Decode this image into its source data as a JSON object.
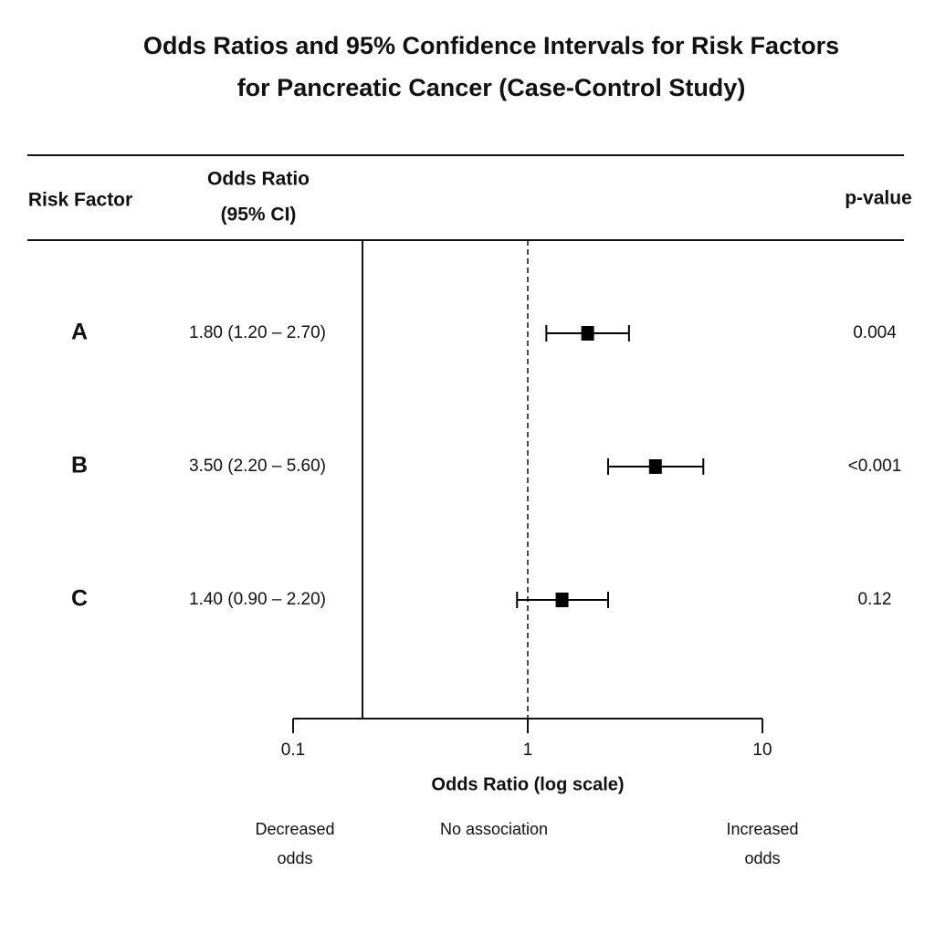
{
  "chart_data": {
    "type": "forest",
    "title": [
      "Odds Ratios and 95% Confidence Intervals for Risk Factors",
      "for Pancreatic Cancer (Case-Control Study)"
    ],
    "columns": {
      "risk_factor": "Risk Factor",
      "odds_ratio": [
        "Odds Ratio",
        "(95% CI)"
      ],
      "p_value": "p-value"
    },
    "categories": [
      "A",
      "B",
      "C"
    ],
    "values": [
      1.8,
      3.5,
      1.4
    ],
    "ci_low": [
      1.2,
      2.2,
      0.9
    ],
    "ci_high": [
      2.7,
      5.6,
      2.2
    ],
    "value_labels": [
      "1.80  (1.20 – 2.70)",
      "3.50  (2.20 – 5.60)",
      "1.40  (0.90 – 2.20)"
    ],
    "p_value_labels": [
      "0.004",
      "<0.001",
      "0.12"
    ],
    "xlabel": "Odds Ratio (log scale)",
    "xscale": "log",
    "xlim": [
      0.1,
      10
    ],
    "xticks": [
      0.1,
      1,
      10
    ],
    "reference_line": 1,
    "annotations": [
      [
        "Decreased",
        "odds"
      ],
      [
        "No association"
      ],
      [
        "Increased",
        "odds"
      ]
    ],
    "color": "#000000"
  }
}
